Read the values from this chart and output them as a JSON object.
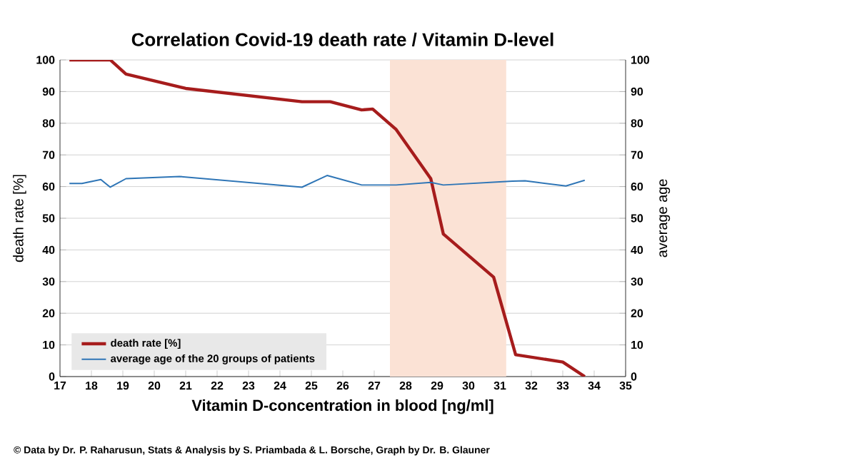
{
  "chart_data": {
    "type": "line",
    "title": "Correlation Covid-19 death rate / Vitamin D-level",
    "xlabel": "Vitamin D-concentration in blood [ng/ml]",
    "ylabel": "death rate [%]",
    "y2label": "average age",
    "xlim": [
      17,
      35
    ],
    "xticks": [
      17,
      18,
      19,
      20,
      21,
      22,
      23,
      24,
      25,
      26,
      27,
      28,
      29,
      30,
      31,
      32,
      33,
      34,
      35
    ],
    "ylim": [
      0,
      100
    ],
    "yticks": [
      0,
      10,
      20,
      30,
      40,
      50,
      60,
      70,
      80,
      90,
      100
    ],
    "y2lim": [
      0,
      100
    ],
    "y2ticks": [
      0,
      10,
      20,
      30,
      40,
      50,
      60,
      70,
      80,
      90,
      100
    ],
    "grid": "y",
    "legend": "bottom left",
    "line_style": "solid",
    "bands": [
      {
        "axis": "x",
        "from": 27.5,
        "to": 31.2,
        "color": "#fbe2d5"
      }
    ],
    "series": [
      {
        "name": "death rate [%]",
        "color": "#a61c1c",
        "x": [
          17.3,
          18.6,
          19.1,
          21.0,
          24.7,
          25.6,
          26.6,
          26.95,
          27.7,
          28.8,
          29.2,
          30.8,
          31.5,
          33.0,
          33.7
        ],
        "values": [
          100,
          100,
          95.5,
          91,
          86.8,
          86.8,
          84.2,
          84.5,
          78,
          62.5,
          45,
          31.4,
          6.9,
          4.6,
          0
        ]
      },
      {
        "name": "average age of the 20 groups of patients",
        "color": "#2e75b6",
        "axis": "y2",
        "x": [
          17.3,
          17.7,
          18.3,
          18.6,
          19.1,
          20.8,
          24.7,
          25.5,
          26.6,
          26.9,
          27.7,
          28.8,
          29.2,
          31.4,
          31.8,
          33.1,
          33.7
        ],
        "values": [
          61,
          61,
          62.2,
          59.8,
          62.5,
          63.2,
          59.8,
          63.5,
          60.5,
          60.5,
          60.5,
          61.3,
          60.5,
          61.7,
          61.8,
          60.2,
          62
        ]
      }
    ],
    "annotations": [
      "© Data by Dr. P. Raharusun, Stats & Analysis by S. Priambada & L. Borsche, Graph by Dr. B. Glauner"
    ]
  }
}
